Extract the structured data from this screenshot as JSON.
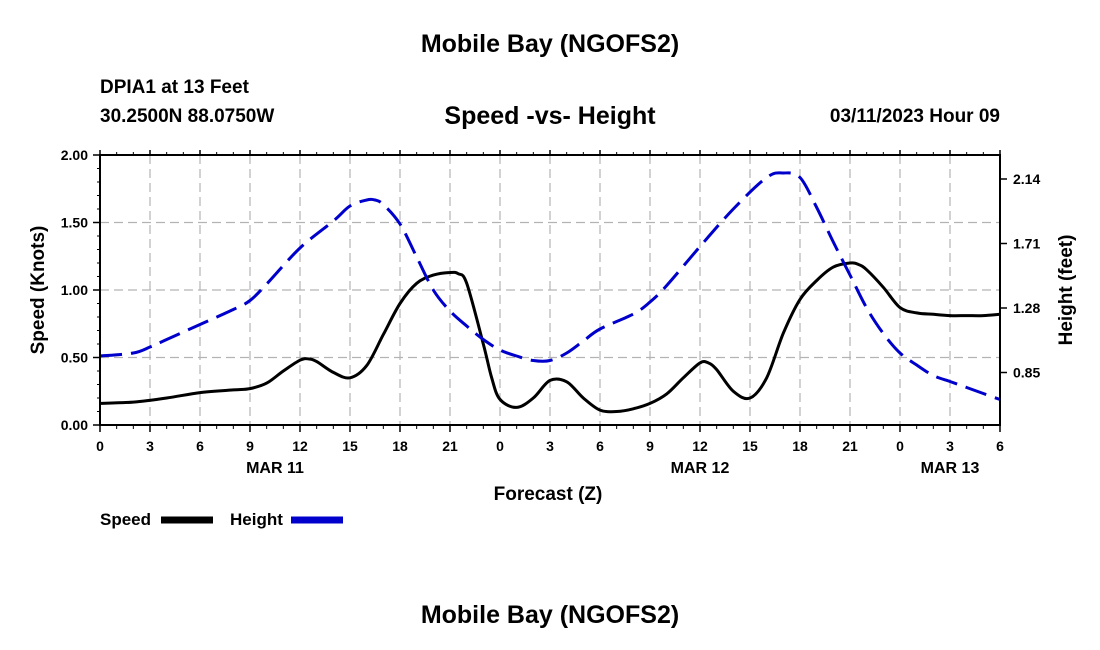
{
  "page": {
    "title_top": "Mobile Bay (NGOFS2)",
    "title_bottom": "Mobile Bay (NGOFS2)",
    "station": "DPIA1 at 13 Feet",
    "coords": "30.2500N  88.0750W",
    "timestamp": "03/11/2023 Hour 09"
  },
  "chart_data": {
    "type": "line",
    "title": "Speed -vs- Height",
    "xlabel": "Forecast (Z)",
    "ylabel": "Speed (Knots)",
    "y2label": "Height (feet)",
    "x_range_hours": [
      0,
      54
    ],
    "ylim": [
      0,
      2
    ],
    "y2lim": [
      0.5,
      2.3
    ],
    "x_ticks": [
      {
        "h": 0,
        "label": "0"
      },
      {
        "h": 3,
        "label": "3"
      },
      {
        "h": 6,
        "label": "6"
      },
      {
        "h": 9,
        "label": "9"
      },
      {
        "h": 12,
        "label": "12"
      },
      {
        "h": 15,
        "label": "15"
      },
      {
        "h": 18,
        "label": "18"
      },
      {
        "h": 21,
        "label": "21"
      },
      {
        "h": 24,
        "label": "0"
      },
      {
        "h": 27,
        "label": "3"
      },
      {
        "h": 30,
        "label": "6"
      },
      {
        "h": 33,
        "label": "9"
      },
      {
        "h": 36,
        "label": "12"
      },
      {
        "h": 39,
        "label": "15"
      },
      {
        "h": 42,
        "label": "18"
      },
      {
        "h": 45,
        "label": "21"
      },
      {
        "h": 48,
        "label": "0"
      },
      {
        "h": 51,
        "label": "3"
      },
      {
        "h": 54,
        "label": "6"
      }
    ],
    "date_labels": [
      {
        "h": 10.5,
        "label": "MAR 11"
      },
      {
        "h": 36,
        "label": "MAR 12"
      },
      {
        "h": 51,
        "label": "MAR 13"
      }
    ],
    "y_ticks": [
      {
        "v": 0.0,
        "label": "0.00"
      },
      {
        "v": 0.5,
        "label": "0.50"
      },
      {
        "v": 1.0,
        "label": "1.00"
      },
      {
        "v": 1.5,
        "label": "1.50"
      },
      {
        "v": 2.0,
        "label": "2.00"
      }
    ],
    "y2_ticks": [
      {
        "v": 0.85,
        "label": "0.85"
      },
      {
        "v": 1.28,
        "label": "1.28"
      },
      {
        "v": 1.71,
        "label": "1.71"
      },
      {
        "v": 2.14,
        "label": "2.14"
      }
    ],
    "grid": true,
    "legend": [
      {
        "name": "Speed",
        "color": "#000000"
      },
      {
        "name": "Height",
        "color": "#0000cc"
      }
    ],
    "series": [
      {
        "name": "Speed",
        "axis": "left",
        "color": "#000000",
        "dash": "none",
        "x": [
          0,
          2,
          4,
          6,
          8,
          9,
          10,
          11,
          12,
          12.5,
          13,
          14,
          15,
          16,
          17,
          18,
          19,
          20,
          21,
          21.5,
          22,
          23,
          23.5,
          24,
          25,
          26,
          27,
          28,
          29,
          30,
          31,
          32,
          33,
          34,
          35,
          36,
          36.5,
          37,
          38,
          39,
          40,
          41,
          42,
          43,
          44,
          45,
          45.5,
          46,
          47,
          48,
          49,
          50,
          51,
          52,
          53,
          54
        ],
        "values": [
          0.16,
          0.17,
          0.2,
          0.24,
          0.26,
          0.27,
          0.31,
          0.4,
          0.48,
          0.49,
          0.47,
          0.39,
          0.35,
          0.44,
          0.67,
          0.9,
          1.05,
          1.11,
          1.13,
          1.12,
          1.05,
          0.6,
          0.35,
          0.19,
          0.13,
          0.2,
          0.33,
          0.32,
          0.2,
          0.11,
          0.1,
          0.12,
          0.16,
          0.23,
          0.35,
          0.46,
          0.46,
          0.41,
          0.25,
          0.2,
          0.35,
          0.68,
          0.93,
          1.07,
          1.17,
          1.2,
          1.19,
          1.15,
          1.02,
          0.87,
          0.83,
          0.82,
          0.81,
          0.81,
          0.81,
          0.82
        ]
      },
      {
        "name": "Height",
        "axis": "right",
        "color": "#0000cc",
        "dash": "22,9",
        "x": [
          0,
          2,
          3,
          4,
          6,
          8,
          9,
          10,
          12,
          14,
          15,
          16,
          16.5,
          17,
          18,
          19,
          20,
          21,
          22,
          23,
          24,
          25,
          26,
          27,
          28,
          29,
          30,
          32,
          33,
          34,
          36,
          38,
          40,
          41,
          42,
          43,
          44,
          45,
          46,
          47,
          48,
          49,
          50,
          51,
          52,
          53,
          54
        ],
        "values": [
          0.96,
          0.98,
          1.02,
          1.07,
          1.17,
          1.27,
          1.33,
          1.44,
          1.68,
          1.86,
          1.96,
          2.0,
          2.0,
          1.97,
          1.84,
          1.62,
          1.4,
          1.26,
          1.16,
          1.07,
          1.0,
          0.96,
          0.93,
          0.93,
          0.98,
          1.06,
          1.14,
          1.24,
          1.32,
          1.43,
          1.69,
          1.94,
          2.15,
          2.18,
          2.15,
          1.95,
          1.72,
          1.5,
          1.28,
          1.11,
          0.98,
          0.9,
          0.83,
          0.79,
          0.75,
          0.71,
          0.67
        ]
      }
    ]
  }
}
